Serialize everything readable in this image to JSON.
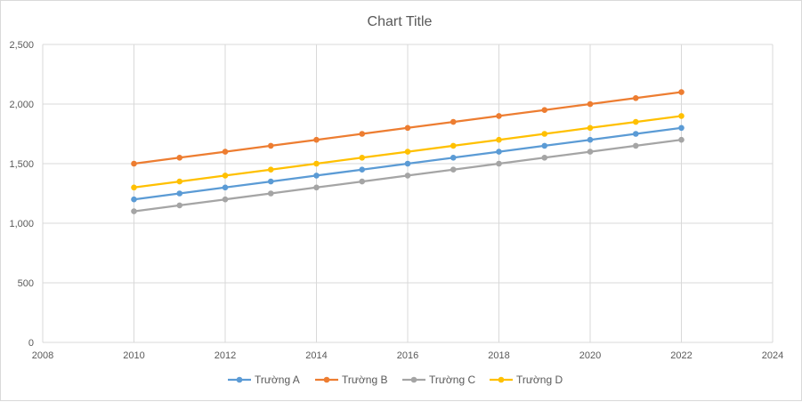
{
  "chart_data": {
    "type": "scatter",
    "title": "Chart Title",
    "xlabel": "",
    "ylabel": "",
    "xlim": [
      2008,
      2024
    ],
    "ylim": [
      0,
      2500
    ],
    "x_ticks": [
      2008,
      2010,
      2012,
      2014,
      2016,
      2018,
      2020,
      2022,
      2024
    ],
    "y_ticks": [
      0,
      500,
      1000,
      1500,
      2000,
      2500
    ],
    "y_tick_labels": [
      "0",
      "500",
      "1,000",
      "1,500",
      "2,000",
      "2,500"
    ],
    "grid": true,
    "legend_position": "bottom",
    "x": [
      2010,
      2011,
      2012,
      2013,
      2014,
      2015,
      2016,
      2017,
      2018,
      2019,
      2020,
      2021,
      2022
    ],
    "series": [
      {
        "name": "Trường A",
        "color": "#5b9bd5",
        "values": [
          1200,
          1250,
          1300,
          1350,
          1400,
          1450,
          1500,
          1550,
          1600,
          1650,
          1700,
          1750,
          1800
        ]
      },
      {
        "name": "Trường B",
        "color": "#ed7d31",
        "values": [
          1500,
          1550,
          1600,
          1650,
          1700,
          1750,
          1800,
          1850,
          1900,
          1950,
          2000,
          2050,
          2100
        ]
      },
      {
        "name": "Trường C",
        "color": "#a5a5a5",
        "values": [
          1100,
          1150,
          1200,
          1250,
          1300,
          1350,
          1400,
          1450,
          1500,
          1550,
          1600,
          1650,
          1700
        ]
      },
      {
        "name": "Trường D",
        "color": "#ffc000",
        "values": [
          1300,
          1350,
          1400,
          1450,
          1500,
          1550,
          1600,
          1650,
          1700,
          1750,
          1800,
          1850,
          1900
        ]
      }
    ]
  }
}
